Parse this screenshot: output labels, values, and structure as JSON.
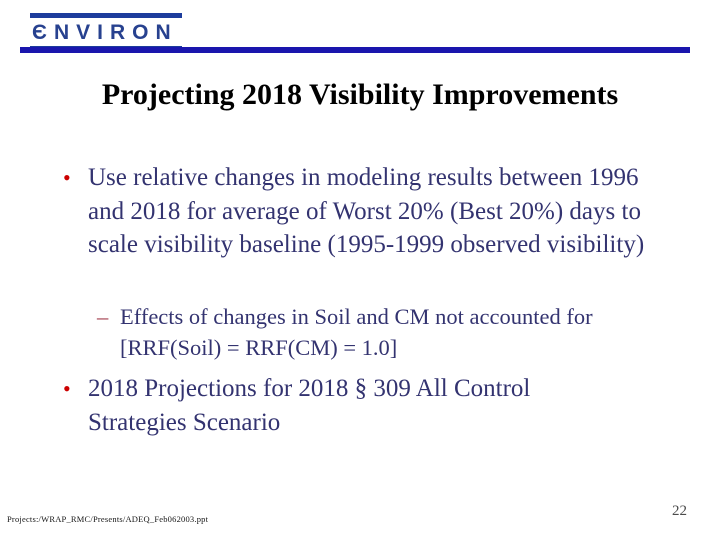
{
  "logo": {
    "text": "ЄNVIRON"
  },
  "slide": {
    "title": "Projecting 2018 Visibility Improvements",
    "bullets": [
      {
        "marker": "•",
        "text": "Use relative changes in modeling results between 1996 and 2018 for average of Worst 20% (Best 20%) days to scale visibility baseline (1995-1999 observed visibility)"
      },
      {
        "marker": "–",
        "text": "Effects of changes in Soil and CM not accounted for [RRF(Soil) = RRF(CM) = 1.0]"
      },
      {
        "marker": "•",
        "text": "2018 Projections for 2018 § 309 All Control Strategies Scenario"
      }
    ]
  },
  "footer": {
    "file_path": "Projects:/WRAP_RMC/Presents/ADEQ_Feb062003.ppt",
    "page_number": "22"
  },
  "colors": {
    "logo_blue": "#27418f",
    "divider_blue": "#1a16ad",
    "title_text": "#000000",
    "body_text": "#333370",
    "bullet_dot_red": "#cc0000",
    "sub_dash_red": "#a03a4a",
    "page_number_gray": "#4a4a4a"
  }
}
